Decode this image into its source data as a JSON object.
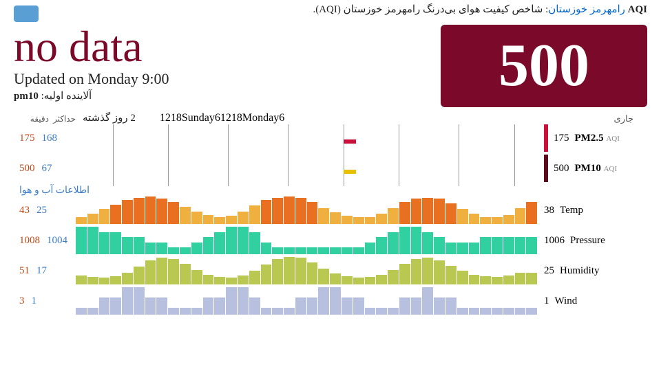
{
  "header": {
    "aqi_word": "AQI",
    "location": "رامهرمز خوزستان",
    "description": ": شاخص کیفیت هوای بی‌درنگ رامهرمز خوزستان (AQI)."
  },
  "main": {
    "no_data": "no data",
    "updated": "Updated on Monday 9:00",
    "pollutant_label": "آلاینده اولیه:",
    "pollutant_value": "pm10",
    "aqi_value": "500"
  },
  "stat_headers": {
    "past": "2 روز گذشته",
    "min": "دقیقه",
    "max": "حداکثر"
  },
  "current_header": "جاری",
  "time_axis": {
    "ticks": [
      {
        "pos": 8,
        "label": "12"
      },
      {
        "pos": 20,
        "label": "18"
      },
      {
        "pos": 33,
        "label": "Sunday"
      },
      {
        "pos": 46,
        "label": "6"
      },
      {
        "pos": 58,
        "label": "12"
      },
      {
        "pos": 70,
        "label": "18"
      },
      {
        "pos": 83,
        "label": "Monday"
      },
      {
        "pos": 95,
        "label": "6"
      }
    ]
  },
  "pm_rows": [
    {
      "max": "175",
      "min": "168",
      "current": "175",
      "label": "PM2.5",
      "sub": "AQI",
      "indicator_color": "#c8103a",
      "mini_bars": [
        {
          "pos": 58,
          "h": 6,
          "color": "#c8103a"
        }
      ]
    },
    {
      "max": "500",
      "min": "67",
      "current": "500",
      "label": "PM10",
      "sub": "AQI",
      "indicator_color": "#5a0a1a",
      "mini_bars": [
        {
          "pos": 58,
          "h": 6,
          "color": "#e8c000"
        }
      ]
    }
  ],
  "weather_header": "اطلاعات آب و هوا",
  "weather_rows": [
    {
      "max": "43",
      "min": "25",
      "current": "38",
      "label": "Temp",
      "colors": {
        "low": "#f0b040",
        "high": "#e87020"
      },
      "values": [
        25,
        28,
        32,
        36,
        40,
        42,
        43,
        41,
        38,
        34,
        30,
        27,
        25,
        26,
        30,
        35,
        40,
        42,
        43,
        42,
        38,
        33,
        29,
        26,
        25,
        25,
        28,
        33,
        38,
        41,
        42,
        41,
        37,
        32,
        28,
        25,
        25,
        27,
        33,
        38
      ]
    },
    {
      "max": "1008",
      "min": "1004",
      "current": "1006",
      "label": "Pressure",
      "colors": {
        "low": "#30d0a0",
        "high": "#30d0a0"
      },
      "values": [
        1008,
        1008,
        1007,
        1007,
        1006,
        1006,
        1005,
        1005,
        1004,
        1004,
        1005,
        1006,
        1007,
        1008,
        1008,
        1007,
        1005,
        1004,
        1004,
        1004,
        1004,
        1004,
        1004,
        1004,
        1004,
        1005,
        1006,
        1007,
        1008,
        1008,
        1007,
        1006,
        1005,
        1005,
        1005,
        1006,
        1006,
        1006,
        1006,
        1006
      ],
      "range": [
        1004,
        1008
      ]
    },
    {
      "max": "51",
      "min": "17",
      "current": "25",
      "label": "Humidity",
      "colors": {
        "low": "#b8c850",
        "high": "#b8c850"
      },
      "values": [
        20,
        18,
        17,
        19,
        25,
        35,
        45,
        50,
        48,
        40,
        30,
        22,
        18,
        17,
        20,
        28,
        38,
        48,
        51,
        50,
        42,
        32,
        24,
        19,
        17,
        18,
        22,
        30,
        40,
        48,
        50,
        45,
        36,
        28,
        22,
        19,
        18,
        20,
        25,
        25
      ]
    },
    {
      "max": "3",
      "min": "1",
      "current": "1",
      "label": "Wind",
      "colors": {
        "low": "#b8c0e0",
        "high": "#b8c0e0"
      },
      "values": [
        1,
        1,
        2,
        2,
        3,
        3,
        2,
        2,
        1,
        1,
        1,
        2,
        2,
        3,
        3,
        2,
        1,
        1,
        1,
        2,
        2,
        3,
        3,
        2,
        2,
        1,
        1,
        1,
        2,
        2,
        3,
        2,
        2,
        1,
        1,
        1,
        1,
        1,
        1,
        1
      ]
    }
  ]
}
